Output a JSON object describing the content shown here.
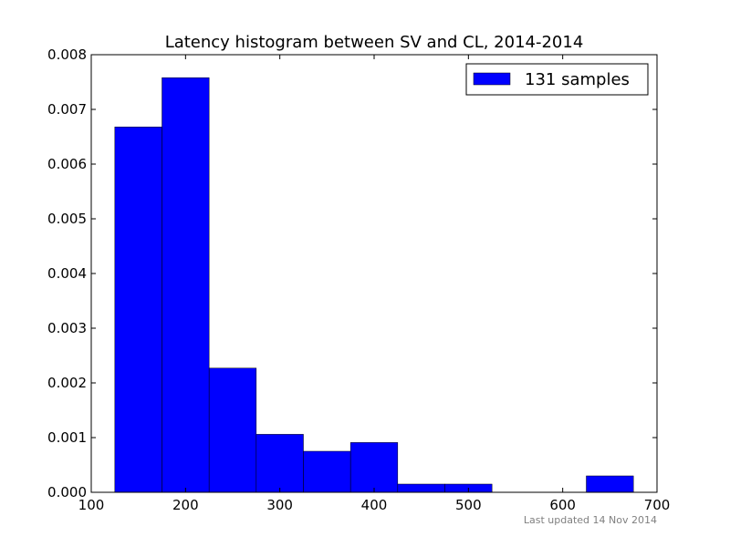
{
  "chart_data": {
    "type": "bar",
    "title": "Latency histogram between SV and CL, 2014-2014",
    "xlabel": "",
    "ylabel": "",
    "xlim": [
      100,
      700
    ],
    "ylim": [
      0,
      0.008
    ],
    "grid": false,
    "legend_position": "top-right",
    "bin_width": 50,
    "bins": [
      {
        "x_start": 125,
        "x_end": 175,
        "value": 0.00668
      },
      {
        "x_start": 175,
        "x_end": 225,
        "value": 0.00758
      },
      {
        "x_start": 225,
        "x_end": 275,
        "value": 0.00227
      },
      {
        "x_start": 275,
        "x_end": 325,
        "value": 0.00106
      },
      {
        "x_start": 325,
        "x_end": 375,
        "value": 0.00075
      },
      {
        "x_start": 375,
        "x_end": 425,
        "value": 0.00091
      },
      {
        "x_start": 425,
        "x_end": 475,
        "value": 0.00015
      },
      {
        "x_start": 475,
        "x_end": 525,
        "value": 0.00015
      },
      {
        "x_start": 525,
        "x_end": 575,
        "value": 0.0
      },
      {
        "x_start": 575,
        "x_end": 625,
        "value": 0.0
      },
      {
        "x_start": 625,
        "x_end": 675,
        "value": 0.0003
      }
    ],
    "x_ticks": [
      100,
      200,
      300,
      400,
      500,
      600,
      700
    ],
    "x_tick_labels": [
      "100",
      "200",
      "300",
      "400",
      "500",
      "600",
      "700"
    ],
    "y_ticks": [
      0,
      0.001,
      0.002,
      0.003,
      0.004,
      0.005,
      0.006,
      0.007,
      0.008
    ],
    "y_tick_labels": [
      "0.000",
      "0.001",
      "0.002",
      "0.003",
      "0.004",
      "0.005",
      "0.006",
      "0.007",
      "0.008"
    ],
    "series": [
      {
        "name": "131 samples",
        "color": "#0000ff"
      }
    ],
    "footnote": "Last updated 14 Nov 2014"
  }
}
